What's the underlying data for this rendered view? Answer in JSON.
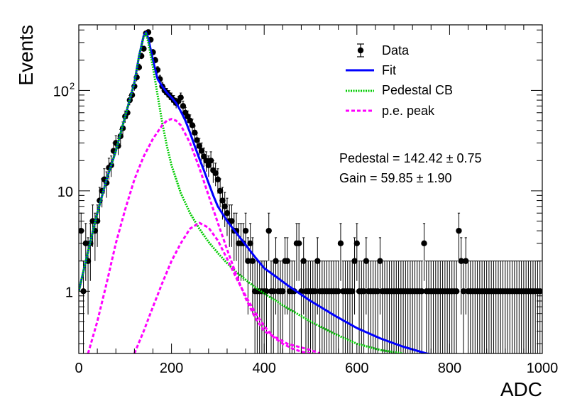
{
  "chart_data": {
    "type": "scatter",
    "xlabel": "ADC",
    "ylabel": "Events",
    "xlim": [
      0,
      1000
    ],
    "ylim": [
      0.24,
      450
    ],
    "yscale": "log",
    "grid": false,
    "legend_position": "top-right",
    "x_ticks": [
      0,
      200,
      400,
      600,
      800,
      1000
    ],
    "x_tick_labels": [
      "0",
      "200",
      "400",
      "600",
      "800",
      "1000"
    ],
    "y_ticks": [
      1,
      10,
      100
    ],
    "y_tick_labels": [
      {
        "text": "1",
        "sup": ""
      },
      {
        "text": "10",
        "sup": ""
      },
      {
        "text": "10",
        "sup": "2"
      }
    ],
    "legend": {
      "data": "Data",
      "fit": "Fit",
      "pedestal": "Pedestal CB",
      "pe_peak": "p.e. peak"
    },
    "annotations": {
      "pedestal": "Pedestal = 142.42 ± 0.75",
      "gain": "Gain = 59.85 ± 1.90"
    },
    "colors": {
      "data": "#000000",
      "fit": "#0000ff",
      "pedestal": "#00cc00",
      "pe_peak": "#ff00ff"
    },
    "series": [
      {
        "name": "Data",
        "style": "points-with-errors",
        "x": [
          5,
          10,
          15,
          20,
          25,
          30,
          35,
          40,
          45,
          50,
          55,
          60,
          65,
          70,
          75,
          80,
          85,
          90,
          95,
          100,
          105,
          110,
          115,
          120,
          125,
          130,
          135,
          140,
          145,
          150,
          155,
          160,
          165,
          170,
          175,
          180,
          185,
          190,
          195,
          200,
          205,
          210,
          215,
          220,
          225,
          230,
          235,
          240,
          245,
          250,
          255,
          260,
          265,
          270,
          275,
          280,
          285,
          290,
          295,
          300,
          305,
          310,
          315,
          320,
          325,
          330,
          335,
          340,
          345,
          350,
          355,
          360,
          365,
          370,
          375,
          380,
          385,
          390,
          395,
          400,
          405,
          410,
          415,
          420,
          425,
          430,
          435,
          440,
          445,
          450,
          455,
          460,
          465,
          470,
          475,
          480,
          485,
          490,
          495,
          500,
          505,
          510,
          515,
          520,
          525,
          530,
          535,
          540,
          545,
          550,
          555,
          560,
          565,
          570,
          575,
          580,
          585,
          590,
          595,
          600,
          605,
          610,
          615,
          620,
          625,
          630,
          635,
          640,
          645,
          650,
          655,
          660,
          665,
          670,
          675,
          680,
          685,
          690,
          695,
          700,
          705,
          710,
          715,
          720,
          725,
          730,
          735,
          740,
          745,
          750,
          755,
          760,
          765,
          770,
          775,
          780,
          785,
          790,
          795,
          800,
          805,
          810,
          815,
          820,
          825,
          830,
          835,
          840,
          845,
          850,
          855,
          860,
          865,
          870,
          875,
          880,
          885,
          890,
          895,
          900,
          905,
          910,
          915,
          920,
          925,
          930,
          935,
          940,
          945,
          950,
          955,
          960,
          965,
          970,
          975,
          980,
          985,
          990,
          995
        ],
        "y": [
          4,
          1,
          3,
          2,
          3,
          5,
          4,
          5,
          8,
          10,
          13,
          12,
          17,
          18,
          25,
          30,
          28,
          35,
          42,
          55,
          60,
          80,
          90,
          110,
          135,
          170,
          220,
          260,
          370,
          380,
          320,
          240,
          200,
          160,
          130,
          110,
          100,
          95,
          90,
          85,
          80,
          75,
          78,
          85,
          70,
          60,
          55,
          50,
          45,
          38,
          32,
          28,
          25,
          22,
          20,
          18,
          20,
          16,
          15,
          13,
          10,
          8,
          7,
          6,
          5,
          5,
          4,
          4,
          3,
          3,
          3,
          4,
          2,
          3,
          2,
          1,
          1,
          1,
          1,
          1,
          1,
          4,
          1,
          1,
          2,
          1,
          1,
          1,
          2,
          2,
          1,
          1,
          1,
          3,
          3,
          1,
          2,
          1,
          1,
          1,
          1,
          1,
          2,
          1,
          1,
          1,
          1,
          1,
          1,
          1,
          1,
          1,
          3,
          1,
          1,
          1,
          1,
          1,
          2,
          3,
          1,
          1,
          1,
          2,
          1,
          1,
          1,
          1,
          1,
          2,
          1,
          1,
          1,
          1,
          1,
          1,
          1,
          1,
          1,
          1,
          1,
          1,
          1,
          1,
          1,
          1,
          1,
          1,
          3,
          1,
          1,
          1,
          1,
          1,
          1,
          1,
          1,
          1,
          1,
          1,
          1,
          1,
          1,
          4,
          2,
          1,
          2,
          1,
          1,
          1,
          1,
          1,
          1,
          1,
          1,
          1,
          1,
          1,
          1,
          1,
          1,
          1,
          1,
          1,
          1,
          1,
          1,
          1,
          1,
          1,
          1,
          1,
          1,
          1,
          1,
          1,
          1,
          1,
          1
        ]
      },
      {
        "name": "Fit",
        "style": "solid-line",
        "x": [
          0,
          20,
          40,
          60,
          80,
          100,
          120,
          130,
          140,
          145,
          150,
          160,
          170,
          180,
          190,
          200,
          210,
          220,
          230,
          240,
          250,
          260,
          270,
          280,
          290,
          300,
          320,
          340,
          360,
          380,
          400,
          450,
          500,
          550,
          600,
          650,
          700,
          750,
          800
        ],
        "y": [
          1.0,
          2.5,
          6,
          13,
          25,
          55,
          120,
          220,
          350,
          380,
          330,
          200,
          130,
          110,
          95,
          85,
          75,
          62,
          50,
          38,
          28,
          21,
          16,
          12,
          9,
          7,
          5,
          3.8,
          2.9,
          2.2,
          1.7,
          1.15,
          0.8,
          0.58,
          0.43,
          0.34,
          0.28,
          0.24,
          0.22
        ]
      },
      {
        "name": "Pedestal CB",
        "style": "dotted-line",
        "x": [
          0,
          20,
          40,
          60,
          80,
          100,
          120,
          130,
          140,
          145,
          150,
          160,
          170,
          180,
          190,
          200,
          220,
          240,
          260,
          280,
          300,
          320,
          340,
          360,
          380,
          400,
          450,
          500,
          550,
          600,
          650,
          700
        ],
        "y": [
          1.0,
          2.5,
          6,
          13,
          25,
          55,
          120,
          220,
          340,
          370,
          300,
          170,
          90,
          48,
          28,
          18,
          9.5,
          6,
          4.2,
          3.1,
          2.4,
          1.9,
          1.55,
          1.3,
          1.1,
          0.95,
          0.68,
          0.5,
          0.38,
          0.3,
          0.26,
          0.24
        ]
      },
      {
        "name": "p.e. peak",
        "style": "dashed-line",
        "component": 1,
        "x": [
          20,
          40,
          60,
          80,
          100,
          120,
          140,
          160,
          180,
          190,
          200,
          210,
          220,
          240,
          260,
          280,
          300,
          320,
          340,
          360,
          380,
          400,
          450,
          500,
          520
        ],
        "y": [
          0.24,
          0.5,
          1.2,
          3,
          6.5,
          13,
          22,
          33,
          45,
          50,
          52,
          50,
          45,
          30,
          17,
          9,
          4.8,
          2.6,
          1.45,
          0.85,
          0.55,
          0.4,
          0.3,
          0.26,
          0.24
        ]
      },
      {
        "name": "p.e. peak",
        "style": "dashed-line",
        "component": 2,
        "x": [
          120,
          140,
          160,
          180,
          200,
          220,
          240,
          260,
          280,
          300,
          320,
          340,
          360,
          380,
          400,
          420,
          440,
          460,
          480,
          500
        ],
        "y": [
          0.24,
          0.4,
          0.7,
          1.2,
          2.0,
          3.0,
          4.2,
          4.8,
          4.3,
          3.2,
          2.1,
          1.35,
          0.9,
          0.62,
          0.45,
          0.35,
          0.3,
          0.27,
          0.25,
          0.24
        ]
      }
    ]
  }
}
